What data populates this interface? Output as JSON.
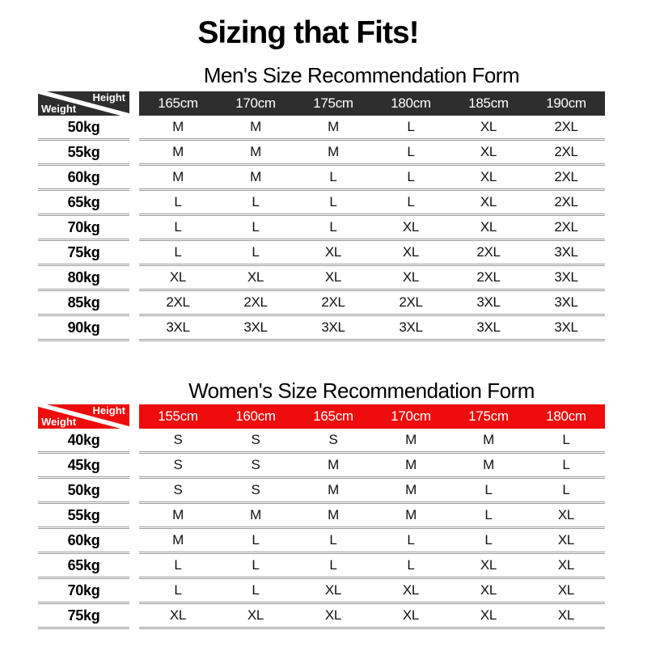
{
  "page_title": "Sizing that Fits!",
  "colors": {
    "men_header_bg": "#2e2e2e",
    "women_header_bg": "#ee0c0c",
    "header_text": "#ffffff",
    "body_text": "#111111",
    "separator_line": "#9c9c9c",
    "background": "#ffffff"
  },
  "chart_data": [
    {
      "type": "table",
      "title": "Men's Size Recommendation Form",
      "header_bg": "#2e2e2e",
      "corner_labels": {
        "top": "Height",
        "bottom": "Weight"
      },
      "columns": [
        "165cm",
        "170cm",
        "175cm",
        "180cm",
        "185cm",
        "190cm"
      ],
      "rows": [
        {
          "weight": "50kg",
          "sizes": [
            "M",
            "M",
            "M",
            "L",
            "XL",
            "2XL"
          ]
        },
        {
          "weight": "55kg",
          "sizes": [
            "M",
            "M",
            "M",
            "L",
            "XL",
            "2XL"
          ]
        },
        {
          "weight": "60kg",
          "sizes": [
            "M",
            "M",
            "L",
            "L",
            "XL",
            "2XL"
          ]
        },
        {
          "weight": "65kg",
          "sizes": [
            "L",
            "L",
            "L",
            "L",
            "XL",
            "2XL"
          ]
        },
        {
          "weight": "70kg",
          "sizes": [
            "L",
            "L",
            "L",
            "XL",
            "XL",
            "2XL"
          ]
        },
        {
          "weight": "75kg",
          "sizes": [
            "L",
            "L",
            "XL",
            "XL",
            "2XL",
            "3XL"
          ]
        },
        {
          "weight": "80kg",
          "sizes": [
            "XL",
            "XL",
            "XL",
            "XL",
            "2XL",
            "3XL"
          ]
        },
        {
          "weight": "85kg",
          "sizes": [
            "2XL",
            "2XL",
            "2XL",
            "2XL",
            "3XL",
            "3XL"
          ]
        },
        {
          "weight": "90kg",
          "sizes": [
            "3XL",
            "3XL",
            "3XL",
            "3XL",
            "3XL",
            "3XL"
          ]
        }
      ]
    },
    {
      "type": "table",
      "title": "Women's Size Recommendation Form",
      "header_bg": "#ee0c0c",
      "corner_labels": {
        "top": "Height",
        "bottom": "Weight"
      },
      "columns": [
        "155cm",
        "160cm",
        "165cm",
        "170cm",
        "175cm",
        "180cm"
      ],
      "rows": [
        {
          "weight": "40kg",
          "sizes": [
            "S",
            "S",
            "S",
            "M",
            "M",
            "L"
          ]
        },
        {
          "weight": "45kg",
          "sizes": [
            "S",
            "S",
            "M",
            "M",
            "M",
            "L"
          ]
        },
        {
          "weight": "50kg",
          "sizes": [
            "S",
            "S",
            "M",
            "M",
            "L",
            "L"
          ]
        },
        {
          "weight": "55kg",
          "sizes": [
            "M",
            "M",
            "M",
            "M",
            "L",
            "XL"
          ]
        },
        {
          "weight": "60kg",
          "sizes": [
            "M",
            "L",
            "L",
            "L",
            "L",
            "XL"
          ]
        },
        {
          "weight": "65kg",
          "sizes": [
            "L",
            "L",
            "L",
            "L",
            "XL",
            "XL"
          ]
        },
        {
          "weight": "70kg",
          "sizes": [
            "L",
            "L",
            "XL",
            "XL",
            "XL",
            "XL"
          ]
        },
        {
          "weight": "75kg",
          "sizes": [
            "XL",
            "XL",
            "XL",
            "XL",
            "XL",
            "XL"
          ]
        }
      ]
    }
  ]
}
